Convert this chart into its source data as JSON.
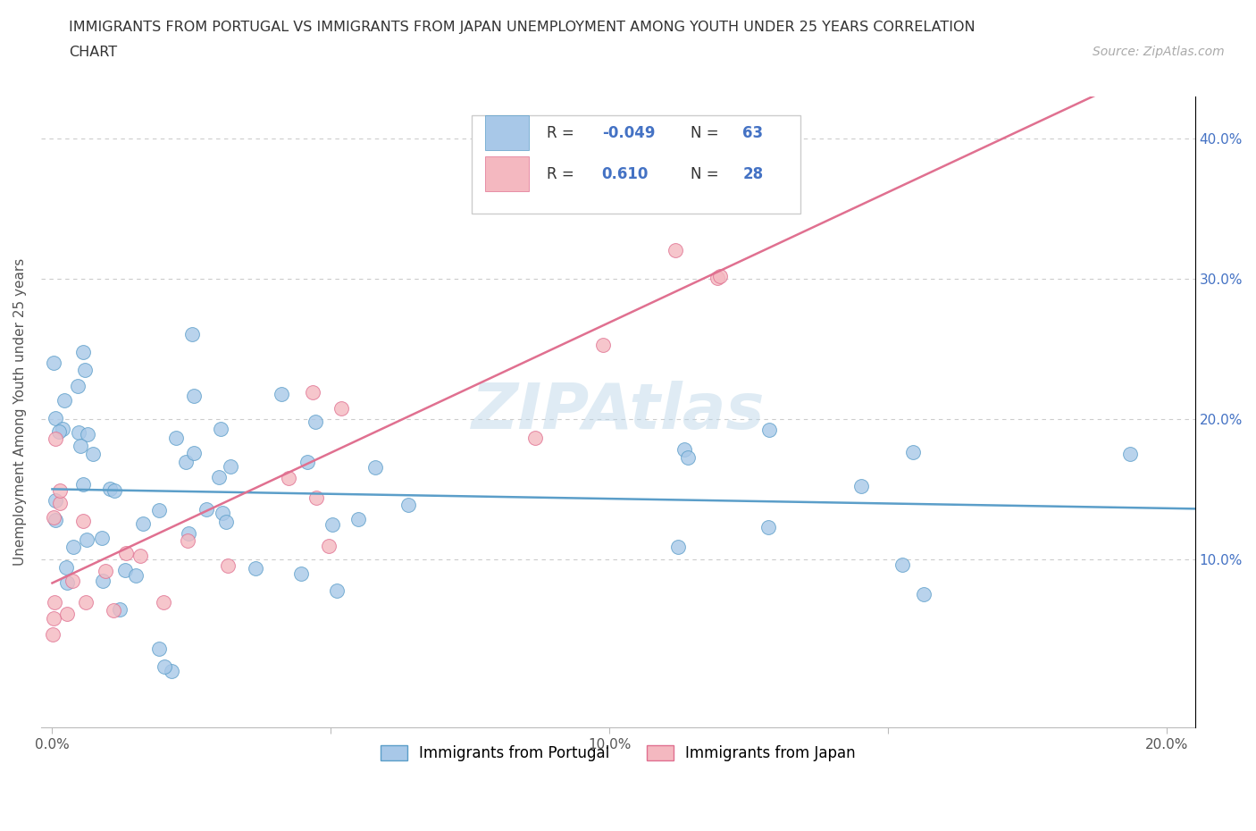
{
  "title_line1": "IMMIGRANTS FROM PORTUGAL VS IMMIGRANTS FROM JAPAN UNEMPLOYMENT AMONG YOUTH UNDER 25 YEARS CORRELATION",
  "title_line2": "CHART",
  "source_text": "Source: ZipAtlas.com",
  "ylabel": "Unemployment Among Youth under 25 years",
  "xlim": [
    -0.002,
    0.205
  ],
  "ylim": [
    -0.02,
    0.43
  ],
  "x_ticks": [
    0.0,
    0.05,
    0.1,
    0.15,
    0.2
  ],
  "x_tick_labels": [
    "0.0%",
    "",
    "10.0%",
    "",
    "20.0%"
  ],
  "y_ticks": [
    0.0,
    0.1,
    0.2,
    0.3,
    0.4
  ],
  "y_tick_labels_right": [
    "",
    "10.0%",
    "20.0%",
    "30.0%",
    "40.0%"
  ],
  "watermark": "ZIPAtlas",
  "color_portugal": "#a8c8e8",
  "color_japan": "#f4b8c0",
  "edge_portugal": "#5b9ec9",
  "edge_japan": "#e07090",
  "line_color_portugal": "#5b9ec9",
  "line_color_japan": "#e07090",
  "right_tick_color": "#4472c4",
  "legend_border_color": "#cccccc",
  "grid_color": "#cccccc",
  "title_color": "#333333",
  "source_color": "#aaaaaa",
  "ylabel_color": "#555555"
}
